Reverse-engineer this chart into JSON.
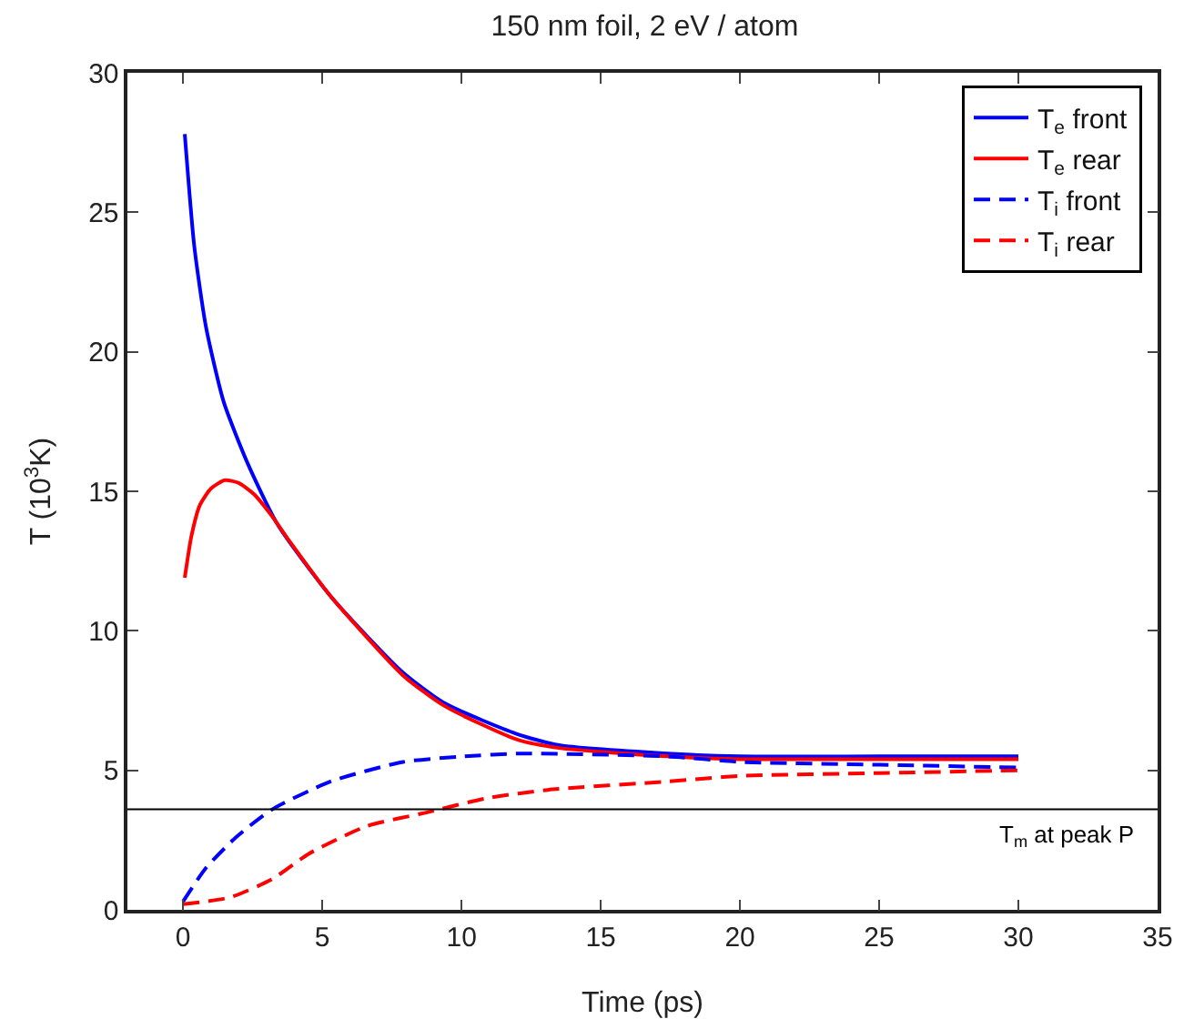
{
  "chart_data": {
    "type": "line",
    "title": "150 nm foil, 2 eV / atom",
    "xlabel": "Time (ps)",
    "ylabel": "T (10$^{3}$K)",
    "xlim": [
      -2,
      35
    ],
    "xticks": [
      0,
      5,
      10,
      15,
      20,
      25,
      30,
      35
    ],
    "ylim": [
      0,
      30
    ],
    "yticks": [
      0,
      5,
      10,
      15,
      20,
      25,
      30
    ],
    "grid": false,
    "legend": "top right",
    "marker": "none",
    "ref_lines": [
      {
        "axis": "y",
        "value": 3.6,
        "label": "T$_{m}$ at peak P",
        "color": "#000000"
      }
    ],
    "series": [
      {
        "name": "T$_{e}$ front",
        "color": "#0000ff",
        "line_style": "solid",
        "x": [
          0.06,
          0.4,
          0.82,
          1.46,
          2.32,
          3.4,
          5.33,
          7.9,
          9.4,
          12,
          13.5,
          17.4,
          20,
          25,
          30
        ],
        "values": [
          27.8,
          23.8,
          20.9,
          18.2,
          16,
          13.8,
          11.2,
          8.5,
          7.4,
          6.3,
          5.9,
          5.6,
          5.5,
          5.5,
          5.5
        ]
      },
      {
        "name": "T$_{e}$ rear",
        "color": "#ff0000",
        "line_style": "solid",
        "x": [
          0.06,
          0.3,
          0.6,
          1,
          1.5,
          2,
          2.54,
          3.2,
          3.83,
          5.33,
          7.9,
          9.4,
          12,
          13.5,
          17.4,
          20,
          25,
          30
        ],
        "values": [
          11.9,
          13.4,
          14.5,
          15.1,
          15.4,
          15.3,
          14.9,
          14.1,
          13.2,
          11.2,
          8.4,
          7.3,
          6.1,
          5.8,
          5.5,
          5.4,
          5.4,
          5.4
        ]
      },
      {
        "name": "T$_{i}$ front",
        "color": "#0000ff",
        "line_style": "dashed",
        "x": [
          0,
          0.82,
          1.9,
          3.2,
          5.3,
          7.9,
          10.1,
          12,
          17.4,
          20,
          25,
          30
        ],
        "values": [
          0.3,
          1.5,
          2.6,
          3.6,
          4.6,
          5.3,
          5.5,
          5.6,
          5.5,
          5.3,
          5.2,
          5.1
        ]
      },
      {
        "name": "T$_{i}$ rear",
        "color": "#ff0000",
        "line_style": "dashed",
        "x": [
          0,
          1.7,
          3.2,
          4.5,
          6.6,
          8.8,
          10.9,
          13.1,
          17.4,
          20,
          25,
          30
        ],
        "values": [
          0.2,
          0.45,
          1.1,
          2,
          3,
          3.5,
          4,
          4.3,
          4.6,
          4.8,
          4.9,
          5
        ]
      }
    ]
  }
}
